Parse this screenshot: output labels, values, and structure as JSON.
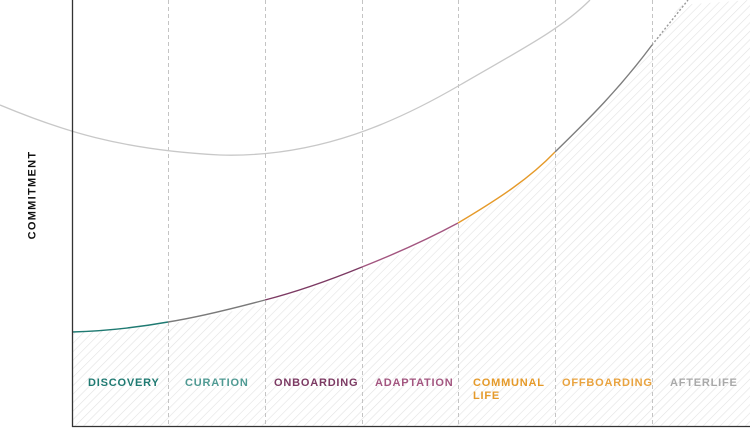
{
  "axis": {
    "y_label": "COMMITMENT"
  },
  "stages": [
    {
      "id": "discovery",
      "label": "DISCOVERY",
      "color": "#1f7a72"
    },
    {
      "id": "curation",
      "label": "CURATION",
      "color": "#4f9a93"
    },
    {
      "id": "onboarding",
      "label": "ONBOARDING",
      "color": "#7c3a63"
    },
    {
      "id": "adaptation",
      "label": "ADAPTATION",
      "color": "#a35680"
    },
    {
      "id": "communal",
      "label": "COMMUNAL\nLIFE",
      "color": "#e59a2a"
    },
    {
      "id": "offboarding",
      "label": "OFFBOARDING",
      "color": "#e9a33f"
    },
    {
      "id": "afterlife",
      "label": "AFTERLIFE",
      "color": "#a9a9a9"
    }
  ],
  "colors": {
    "axis": "#333333",
    "upper_curve": "#c8c8c8",
    "divider": "#c4c4c4",
    "hatch": "#e2e2e2",
    "offboarding_curve": "#7d7d7d"
  }
}
